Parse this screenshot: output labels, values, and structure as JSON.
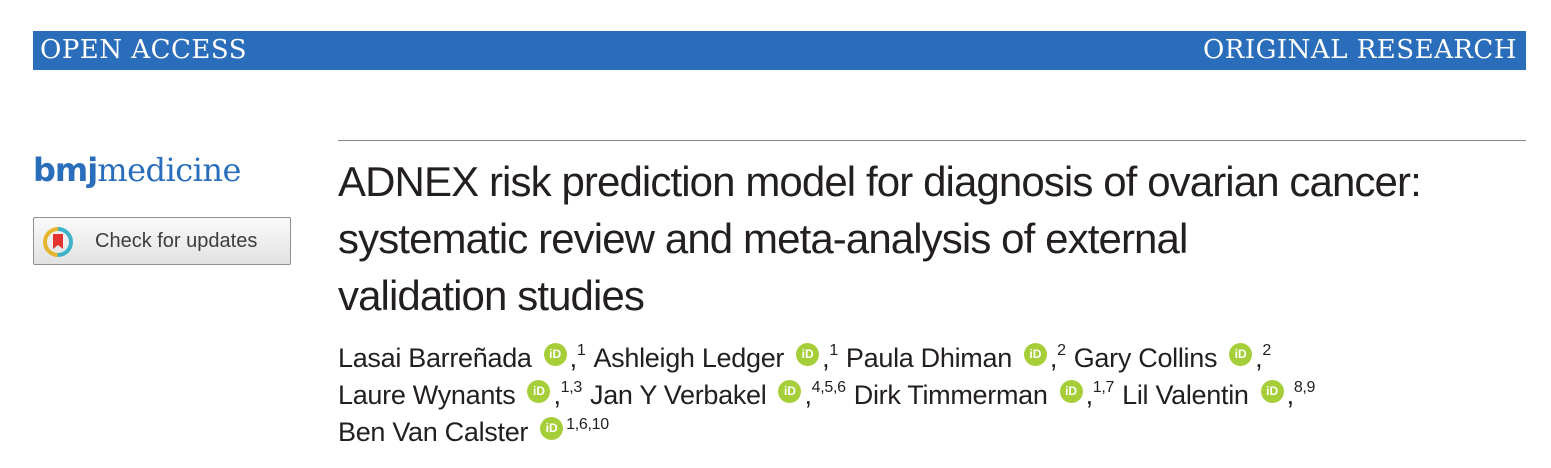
{
  "banner": {
    "left": "OPEN ACCESS",
    "right": "ORIGINAL RESEARCH"
  },
  "logo": {
    "bold": "bmj",
    "regular": "medicine"
  },
  "check_updates": {
    "label": "Check for updates",
    "icon": "crossmark-icon"
  },
  "title_lines": [
    "ADNEX risk prediction model for diagnosis of ovarian cancer:",
    "systematic review and meta-analysis of external",
    "validation studies"
  ],
  "author_lines": [
    [
      {
        "name": "Lasai Barreñada",
        "sep": ",",
        "aff": "1"
      },
      {
        "name": "Ashleigh Ledger",
        "sep": ",",
        "aff": "1"
      },
      {
        "name": "Paula Dhiman",
        "sep": ",",
        "aff": "2"
      },
      {
        "name": "Gary Collins",
        "sep": ",",
        "aff": "2"
      }
    ],
    [
      {
        "name": "Laure Wynants",
        "sep": ",",
        "aff": "1,3"
      },
      {
        "name": "Jan Y Verbakel",
        "sep": ",",
        "aff": "4,5,6"
      },
      {
        "name": "Dirk Timmerman",
        "sep": ",",
        "aff": "1,7"
      },
      {
        "name": "Lil Valentin",
        "sep": ",",
        "aff": "8,9"
      }
    ],
    [
      {
        "name": "Ben Van Calster",
        "sep": "",
        "aff": "1,6,10"
      }
    ]
  ],
  "colors": {
    "brand_blue": "#2a6ebb",
    "orcid_green": "#a6ce39"
  }
}
